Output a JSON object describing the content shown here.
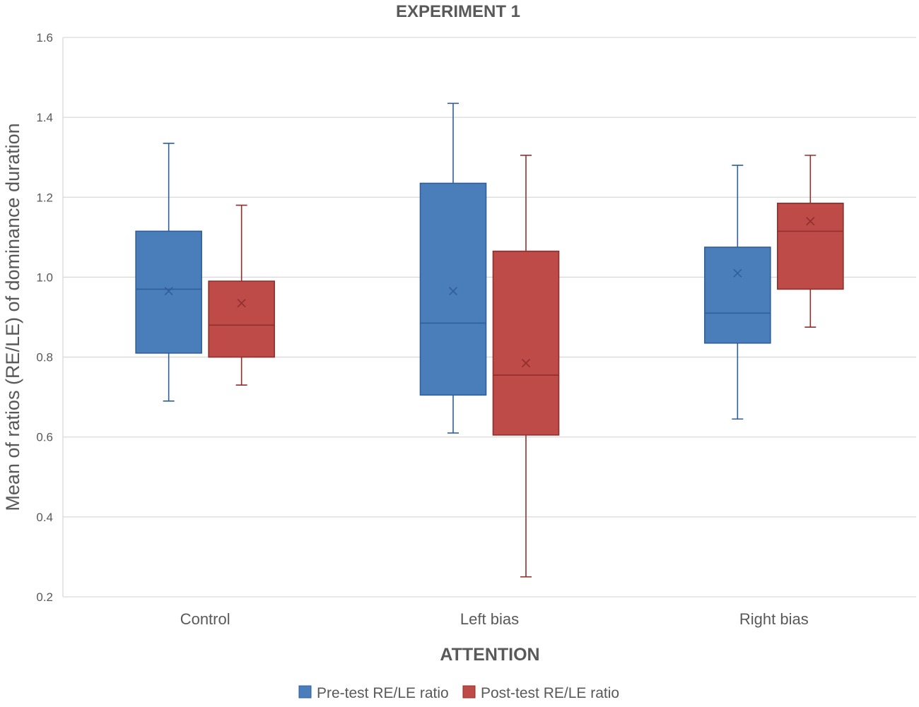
{
  "chart_data": {
    "type": "box",
    "title": "EXPERIMENT 1",
    "xlabel": "ATTENTION",
    "ylabel": "Mean of ratios (RE/LE) of dominance duration",
    "ylim": [
      0.2,
      1.6
    ],
    "yticks": [
      0.2,
      0.4,
      0.6,
      0.8,
      1.0,
      1.2,
      1.4,
      1.6
    ],
    "ytick_labels": [
      "0.2",
      "0.4",
      "0.6",
      "0.8",
      "1.0",
      "1.2",
      "1.4",
      "1.6"
    ],
    "grid": true,
    "legend_position": "bottom",
    "categories": [
      "Control",
      "Left bias",
      "Right bias"
    ],
    "series": [
      {
        "name": "Pre-test RE/LE ratio",
        "color": "#4a7ebb",
        "stroke": "#2f5f9a",
        "boxes": [
          {
            "min": 0.69,
            "q1": 0.81,
            "median": 0.97,
            "q3": 1.115,
            "max": 1.335,
            "mean": 0.965
          },
          {
            "min": 0.61,
            "q1": 0.705,
            "median": 0.885,
            "q3": 1.235,
            "max": 1.435,
            "mean": 0.965
          },
          {
            "min": 0.645,
            "q1": 0.835,
            "median": 0.91,
            "q3": 1.075,
            "max": 1.28,
            "mean": 1.01
          }
        ]
      },
      {
        "name": "Post-test RE/LE ratio",
        "color": "#be4b48",
        "stroke": "#8f2f2c",
        "boxes": [
          {
            "min": 0.73,
            "q1": 0.8,
            "median": 0.88,
            "q3": 0.99,
            "max": 1.18,
            "mean": 0.935
          },
          {
            "min": 0.25,
            "q1": 0.605,
            "median": 0.755,
            "q3": 1.065,
            "max": 1.305,
            "mean": 0.785
          },
          {
            "min": 0.875,
            "q1": 0.97,
            "median": 1.115,
            "q3": 1.185,
            "max": 1.305,
            "mean": 1.14
          }
        ]
      }
    ]
  }
}
